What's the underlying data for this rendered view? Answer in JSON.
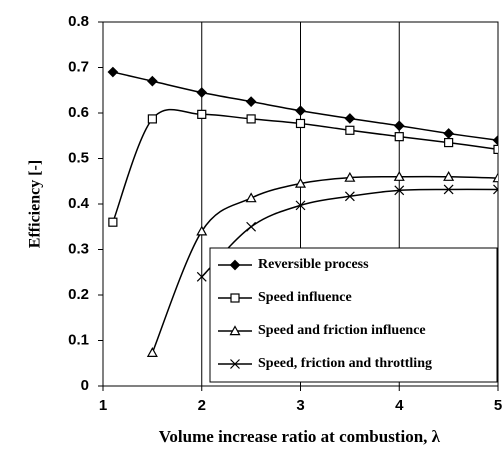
{
  "chart_data": {
    "type": "line",
    "xlabel": "Volume increase ratio at combustion, λ",
    "ylabel": "Efficiency [-]",
    "xlim": [
      1,
      5
    ],
    "xticks": [
      1,
      2,
      3,
      4,
      5
    ],
    "ylim": [
      0,
      0.8
    ],
    "yticks": [
      0,
      0.1,
      0.2,
      0.3,
      0.4,
      0.5,
      0.6,
      0.7,
      0.8
    ],
    "grid": "x",
    "legend": "lower right",
    "series": [
      {
        "name": "Reversible process",
        "color": "#000000",
        "marker": "diamond",
        "x": [
          1.1,
          1.5,
          2,
          2.5,
          3,
          3.5,
          4,
          4.5,
          5
        ],
        "values": [
          0.69,
          0.67,
          0.645,
          0.625,
          0.605,
          0.588,
          0.572,
          0.555,
          0.54
        ]
      },
      {
        "name": "Speed influence",
        "color": "#000000",
        "marker": "square",
        "x": [
          1.1,
          1.5,
          2,
          2.5,
          3,
          3.5,
          4,
          4.5,
          5
        ],
        "values": [
          0.36,
          0.587,
          0.597,
          0.587,
          0.577,
          0.562,
          0.548,
          0.535,
          0.52
        ]
      },
      {
        "name": "Speed and friction influence",
        "color": "#000000",
        "marker": "triangle",
        "x": [
          1.5,
          2,
          2.5,
          3,
          3.5,
          4,
          4.5,
          5
        ],
        "values": [
          0.073,
          0.34,
          0.413,
          0.445,
          0.458,
          0.46,
          0.46,
          0.457
        ]
      },
      {
        "name": "Speed, friction and throttling",
        "color": "#000000",
        "marker": "x",
        "x": [
          2,
          2.5,
          3,
          3.5,
          4,
          4.5,
          5
        ],
        "values": [
          0.24,
          0.35,
          0.397,
          0.417,
          0.43,
          0.432,
          0.432
        ]
      }
    ]
  }
}
